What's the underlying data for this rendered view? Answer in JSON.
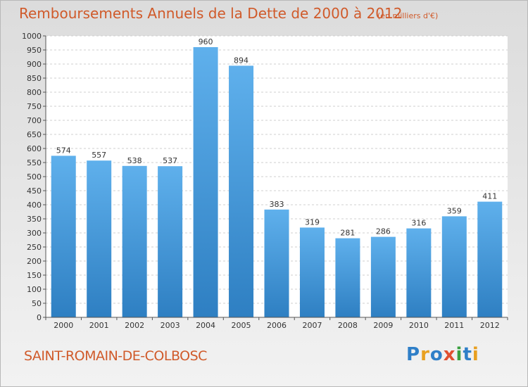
{
  "header": {
    "title": "Remboursements Annuels de la Dette de 2000 à 2012",
    "unit": "(en milliers d'€)"
  },
  "footer": {
    "commune": "SAINT-ROMAIN-DE-COLBOSC",
    "logo": {
      "letters": [
        "P",
        "r",
        "o",
        "x",
        "i",
        "t",
        "i"
      ],
      "colors": [
        "#2f7fc8",
        "#e8a020",
        "#2f7fc8",
        "#e05030",
        "#3aa040",
        "#2f7fc8",
        "#e8a020"
      ]
    }
  },
  "chart_data": {
    "type": "bar",
    "title": "Remboursements Annuels de la Dette de 2000 à 2012",
    "categories": [
      "2000",
      "2001",
      "2002",
      "2003",
      "2004",
      "2005",
      "2006",
      "2007",
      "2008",
      "2009",
      "2010",
      "2011",
      "2012"
    ],
    "values": [
      574,
      557,
      538,
      537,
      960,
      894,
      383,
      319,
      281,
      286,
      316,
      359,
      411
    ],
    "ylim": [
      0,
      1000
    ],
    "ytick_step": 50,
    "grid": true,
    "bar_color": "#4a9fe0"
  }
}
